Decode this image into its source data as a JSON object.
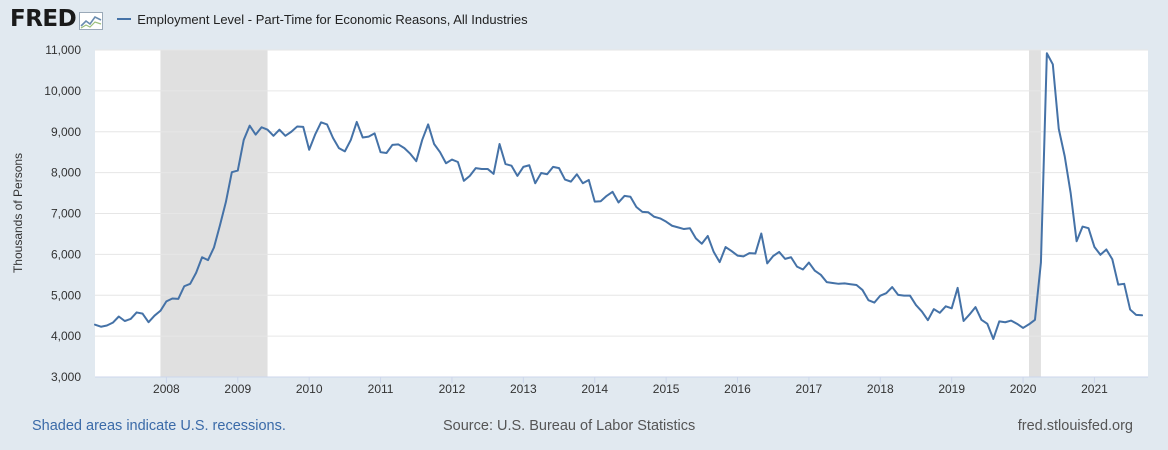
{
  "header": {
    "logo": "FRED",
    "logo_icon": "line-chart-icon",
    "legend_label": "Employment Level - Part-Time for Economic Reasons, All Industries"
  },
  "footer": {
    "recession_note": "Shaded areas indicate U.S. recessions.",
    "source": "Source: U.S. Bureau of Labor Statistics",
    "url": "fred.stlouisfed.org"
  },
  "colors": {
    "series": "#4572a7",
    "recession": "#e0e0e0",
    "background": "#e1e9f0",
    "plot": "#ffffff"
  },
  "chart_data": {
    "type": "line",
    "title": "Employment Level - Part-Time for Economic Reasons, All Industries",
    "xlabel": "",
    "ylabel": "Thousands of Persons",
    "xlim": [
      2007.0,
      2021.75
    ],
    "ylim": [
      3000,
      11000
    ],
    "x_ticks": [
      2008,
      2009,
      2010,
      2011,
      2012,
      2013,
      2014,
      2015,
      2016,
      2017,
      2018,
      2019,
      2020,
      2021
    ],
    "x_tick_labels": [
      "2008",
      "2009",
      "2010",
      "2011",
      "2012",
      "2013",
      "2014",
      "2015",
      "2016",
      "2017",
      "2018",
      "2019",
      "2020",
      "2021"
    ],
    "y_ticks": [
      3000,
      4000,
      5000,
      6000,
      7000,
      8000,
      9000,
      10000,
      11000
    ],
    "y_tick_labels": [
      "3,000",
      "4,000",
      "5,000",
      "6,000",
      "7,000",
      "8,000",
      "9,000",
      "10,000",
      "11,000"
    ],
    "grid": "horizontal",
    "recessions": [
      {
        "start": 2007.917,
        "end": 2009.417
      },
      {
        "start": 2020.083,
        "end": 2020.25
      }
    ],
    "series": [
      {
        "name": "Employment Level - Part-Time for Economic Reasons, All Industries",
        "start": 2007.0,
        "step_months": 1,
        "values": [
          4280,
          4230,
          4260,
          4330,
          4480,
          4370,
          4420,
          4580,
          4550,
          4340,
          4500,
          4620,
          4850,
          4920,
          4910,
          5220,
          5280,
          5550,
          5930,
          5860,
          6170,
          6710,
          7280,
          8010,
          8050,
          8800,
          9150,
          8930,
          9110,
          9050,
          8900,
          9050,
          8900,
          9000,
          9130,
          9120,
          8560,
          8930,
          9230,
          9180,
          8850,
          8600,
          8520,
          8800,
          9240,
          8860,
          8880,
          8960,
          8500,
          8480,
          8680,
          8690,
          8600,
          8460,
          8280,
          8800,
          9180,
          8700,
          8500,
          8230,
          8320,
          8260,
          7800,
          7920,
          8110,
          8090,
          8090,
          7970,
          8700,
          8210,
          8170,
          7920,
          8140,
          8180,
          7740,
          7990,
          7960,
          8140,
          8110,
          7830,
          7780,
          7960,
          7740,
          7820,
          7290,
          7300,
          7430,
          7530,
          7270,
          7430,
          7410,
          7160,
          7040,
          7030,
          6920,
          6880,
          6800,
          6700,
          6660,
          6620,
          6640,
          6390,
          6260,
          6450,
          6060,
          5810,
          6180,
          6080,
          5970,
          5950,
          6030,
          6020,
          6510,
          5780,
          5960,
          6060,
          5890,
          5930,
          5700,
          5630,
          5800,
          5600,
          5500,
          5320,
          5300,
          5280,
          5290,
          5270,
          5250,
          5130,
          4880,
          4820,
          4990,
          5050,
          5200,
          5010,
          4990,
          4990,
          4760,
          4600,
          4390,
          4660,
          4570,
          4730,
          4680,
          5180,
          4370,
          4530,
          4710,
          4400,
          4300,
          3930,
          4360,
          4340,
          4380,
          4300,
          4200,
          4290,
          4400,
          5800,
          10920,
          10650,
          9070,
          8400,
          7500,
          6320,
          6680,
          6640,
          6180,
          5990,
          6120,
          5880,
          5260,
          5280,
          4650,
          4520,
          4510
        ]
      }
    ]
  }
}
